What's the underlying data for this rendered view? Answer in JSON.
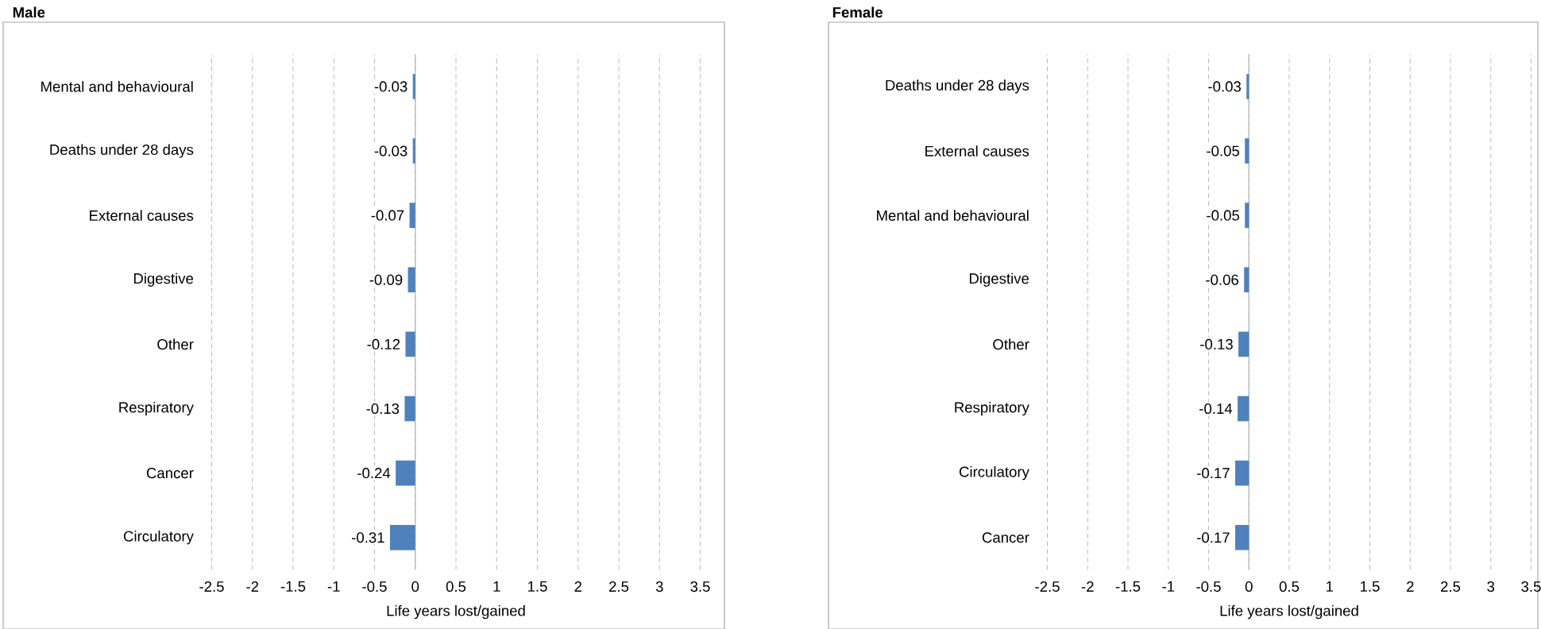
{
  "chart_data": [
    {
      "type": "bar",
      "orientation": "horizontal",
      "title": "Male",
      "xlabel": "Life years lost/gained",
      "categories": [
        "Mental and behavioural",
        "Deaths under 28 days",
        "External causes",
        "Digestive",
        "Other",
        "Respiratory",
        "Cancer",
        "Circulatory"
      ],
      "values": [
        -0.03,
        -0.03,
        -0.07,
        -0.09,
        -0.12,
        -0.13,
        -0.24,
        -0.31
      ],
      "color": "#4f81bd",
      "xlim": [
        -2.5,
        3.5
      ],
      "xticks": [
        -2.5,
        -2,
        -1.5,
        -1,
        -0.5,
        0,
        0.5,
        1,
        1.5,
        2,
        2.5,
        3,
        3.5
      ],
      "grid": "x",
      "data_labels": true
    },
    {
      "type": "bar",
      "orientation": "horizontal",
      "title": "Female",
      "xlabel": "Life years lost/gained",
      "categories": [
        "Deaths under 28 days",
        "External causes",
        "Mental and behavioural",
        "Digestive",
        "Other",
        "Respiratory",
        "Circulatory",
        "Cancer"
      ],
      "values": [
        -0.03,
        -0.05,
        -0.05,
        -0.06,
        -0.13,
        -0.14,
        -0.17,
        -0.17
      ],
      "color": "#4f81bd",
      "xlim": [
        -2.5,
        3.5
      ],
      "xticks": [
        -2.5,
        -2,
        -1.5,
        -1,
        -0.5,
        0,
        0.5,
        1,
        1.5,
        2,
        2.5,
        3,
        3.5
      ],
      "grid": "x",
      "data_labels": true
    }
  ]
}
